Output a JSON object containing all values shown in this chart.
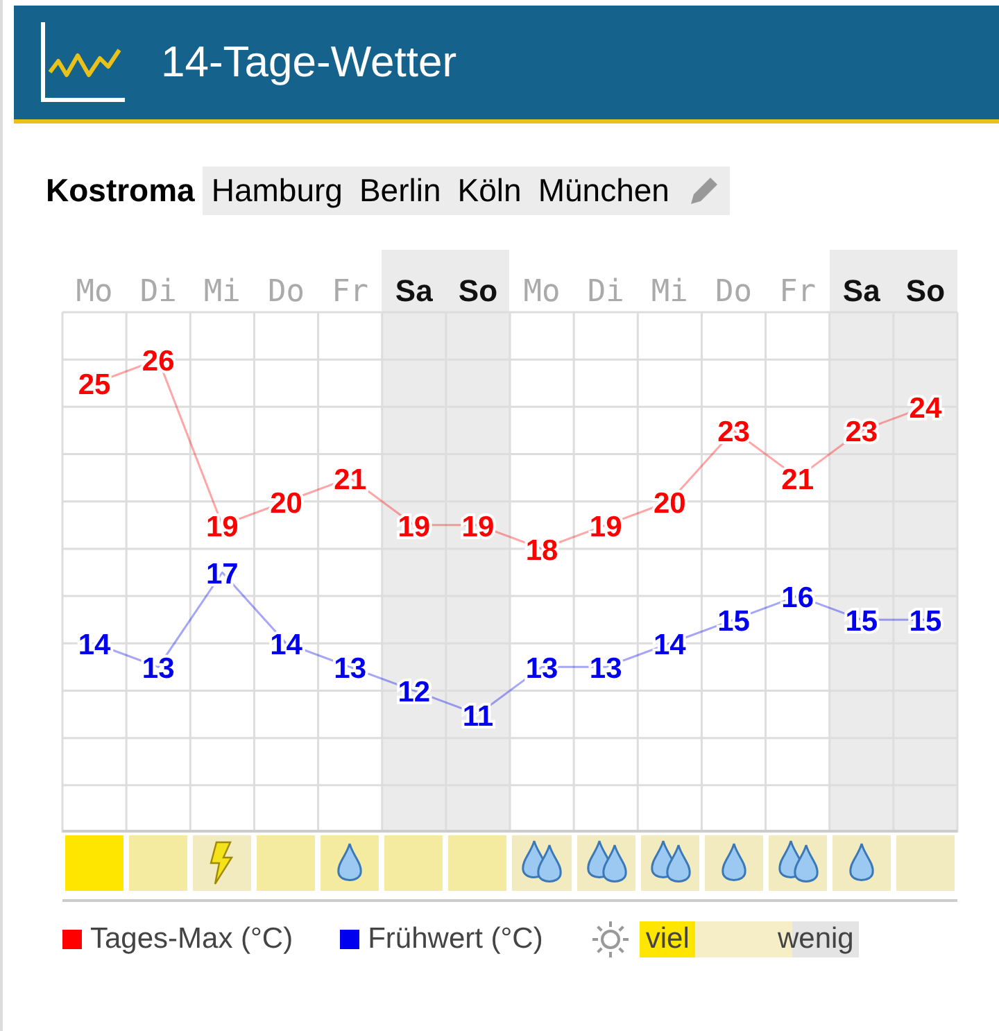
{
  "chart_data": {
    "type": "line",
    "title": "14-Tage-Wetter",
    "categories": [
      "Mo",
      "Di",
      "Mi",
      "Do",
      "Fr",
      "Sa",
      "So",
      "Mo",
      "Di",
      "Mi",
      "Do",
      "Fr",
      "Sa",
      "So"
    ],
    "series": [
      {
        "name": "Tages-Max (°C)",
        "color": "#ff0000",
        "values": [
          25,
          26,
          19,
          20,
          21,
          19,
          19,
          18,
          19,
          20,
          23,
          21,
          23,
          24
        ]
      },
      {
        "name": "Frühwert (°C)",
        "color": "#0000ee",
        "values": [
          14,
          13,
          17,
          14,
          13,
          12,
          11,
          13,
          13,
          14,
          15,
          16,
          15,
          15
        ]
      }
    ],
    "data_labels": true,
    "marker": "none",
    "line_style": "solid",
    "grid": true,
    "legend": "bottom left",
    "tick_labels": "x",
    "annotations": [
      "Kostroma",
      "Hamburg",
      "Berlin",
      "Köln",
      "München",
      "viel",
      "wenig"
    ]
  }
}
